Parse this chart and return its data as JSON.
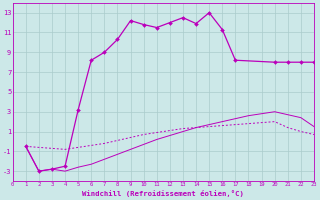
{
  "xlabel": "Windchill (Refroidissement éolien,°C)",
  "background_color": "#cce8e8",
  "grid_color": "#aacccc",
  "line_color": "#bb00bb",
  "xlim": [
    0,
    23
  ],
  "ylim": [
    -4,
    14
  ],
  "xticks": [
    0,
    1,
    2,
    3,
    4,
    5,
    6,
    7,
    8,
    9,
    10,
    11,
    12,
    13,
    14,
    15,
    16,
    17,
    18,
    19,
    20,
    21,
    22,
    23
  ],
  "yticks": [
    -3,
    -1,
    1,
    3,
    5,
    7,
    9,
    11,
    13
  ],
  "line1_x": [
    1,
    2,
    3,
    4,
    5,
    6,
    7,
    8,
    9,
    10,
    11,
    12,
    13,
    14,
    15,
    16,
    17,
    20,
    21,
    22,
    23
  ],
  "line1_y": [
    -0.5,
    -3.0,
    -2.8,
    -2.5,
    3.2,
    8.2,
    9.0,
    10.3,
    12.2,
    11.8,
    11.5,
    12.0,
    12.5,
    11.9,
    13.0,
    11.3,
    8.2,
    8.0,
    8.0,
    8.0,
    8.0
  ],
  "line2_x": [
    1,
    2,
    3,
    4,
    5,
    6,
    7,
    8,
    9,
    10,
    11,
    12,
    13,
    14,
    15,
    16,
    17,
    18,
    19,
    20,
    21,
    22,
    23
  ],
  "line2_y": [
    -0.5,
    -0.6,
    -0.7,
    -0.8,
    -0.6,
    -0.4,
    -0.2,
    0.1,
    0.4,
    0.7,
    0.9,
    1.1,
    1.3,
    1.4,
    1.5,
    1.6,
    1.7,
    1.8,
    1.9,
    2.0,
    1.4,
    1.0,
    0.7
  ],
  "line3_x": [
    1,
    2,
    3,
    4,
    5,
    6,
    7,
    8,
    9,
    10,
    11,
    12,
    13,
    14,
    15,
    16,
    17,
    18,
    19,
    20,
    21,
    22,
    23
  ],
  "line3_y": [
    -0.5,
    -3.0,
    -2.8,
    -3.0,
    -2.6,
    -2.3,
    -1.8,
    -1.3,
    -0.8,
    -0.3,
    0.2,
    0.6,
    1.0,
    1.4,
    1.7,
    2.0,
    2.3,
    2.6,
    2.8,
    3.0,
    2.7,
    2.4,
    1.5
  ]
}
